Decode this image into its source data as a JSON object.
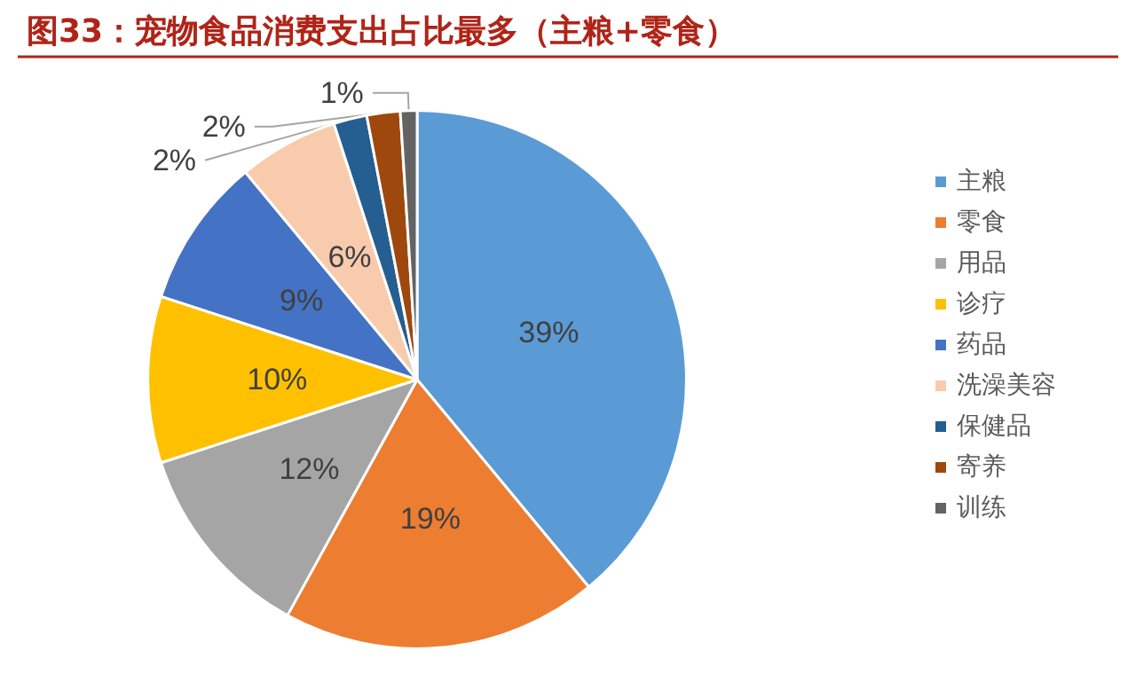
{
  "chart_data": {
    "type": "pie",
    "title": "图33：宠物食品消费支出占比最多（主粮+零食）",
    "categories": [
      "主粮",
      "零食",
      "用品",
      "诊疗",
      "药品",
      "洗澡美容",
      "保健品",
      "寄养",
      "训练"
    ],
    "values": [
      39,
      19,
      12,
      10,
      9,
      6,
      2,
      2,
      1
    ],
    "colors": [
      "#5b9bd5",
      "#ed7d31",
      "#a5a5a5",
      "#ffc000",
      "#4472c4",
      "#f8cbad",
      "#255e91",
      "#9e480e",
      "#636363"
    ],
    "value_labels": [
      "39%",
      "19%",
      "12%",
      "10%",
      "9%",
      "6%",
      "2%",
      "2%",
      "1%"
    ],
    "legend": "right"
  }
}
